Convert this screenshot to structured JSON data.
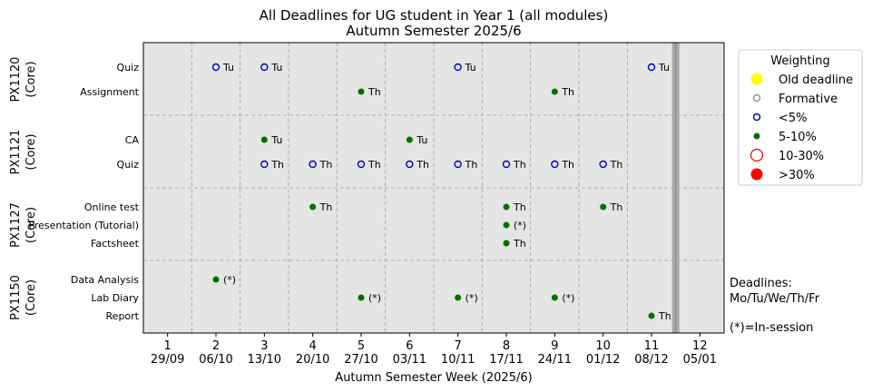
{
  "chart_data": {
    "type": "scatter",
    "title": "All Deadlines for UG student in Year 1 (all modules)",
    "subtitle": "Autumn Semester 2025/6",
    "xlabel": "Autumn Semester Week (2025/6)",
    "xlim": [
      0.5,
      12.5
    ],
    "x_ticks": [
      {
        "week": "1",
        "date": "29/09"
      },
      {
        "week": "2",
        "date": "06/10"
      },
      {
        "week": "3",
        "date": "13/10"
      },
      {
        "week": "4",
        "date": "20/10"
      },
      {
        "week": "5",
        "date": "27/10"
      },
      {
        "week": "6",
        "date": "03/11"
      },
      {
        "week": "7",
        "date": "10/11"
      },
      {
        "week": "8",
        "date": "17/11"
      },
      {
        "week": "9",
        "date": "24/11"
      },
      {
        "week": "10",
        "date": "01/12"
      },
      {
        "week": "11",
        "date": "08/12"
      },
      {
        "week": "12",
        "date": "05/01"
      }
    ],
    "end_of_teaching_marker_week": 11.5,
    "grid": true,
    "modules": [
      {
        "label": "PX1120",
        "sub": "(Core)",
        "rows": [
          "Quiz",
          "Assignment"
        ]
      },
      {
        "label": "PX1121",
        "sub": "(Core)",
        "rows": [
          "CA",
          "Quiz"
        ]
      },
      {
        "label": "PX1127",
        "sub": "(Core)",
        "rows": [
          "Online test",
          "Presentation (Tutorial)",
          "Factsheet"
        ]
      },
      {
        "label": "PX1150",
        "sub": "(Core)",
        "rows": [
          "Data Analysis",
          "Lab Diary",
          "Report"
        ]
      }
    ],
    "legend": {
      "title": "Weighting",
      "position": "top-right",
      "entries": [
        {
          "label": "Old deadline",
          "style": "old"
        },
        {
          "label": "Formative",
          "style": "formative"
        },
        {
          "label": "<5%",
          "style": "lt5"
        },
        {
          "label": "5-10%",
          "style": "5to10"
        },
        {
          "label": "10-30%",
          "style": "10to30"
        },
        {
          "label": ">30%",
          "style": "gt30"
        }
      ]
    },
    "series": [
      {
        "name": "<5%",
        "style": "lt5",
        "points": [
          {
            "module": 0,
            "row": 0,
            "week": 2,
            "label": "Tu"
          },
          {
            "module": 0,
            "row": 0,
            "week": 3,
            "label": "Tu"
          },
          {
            "module": 0,
            "row": 0,
            "week": 7,
            "label": "Tu"
          },
          {
            "module": 0,
            "row": 0,
            "week": 11,
            "label": "Tu"
          },
          {
            "module": 1,
            "row": 1,
            "week": 3,
            "label": "Th"
          },
          {
            "module": 1,
            "row": 1,
            "week": 4,
            "label": "Th"
          },
          {
            "module": 1,
            "row": 1,
            "week": 5,
            "label": "Th"
          },
          {
            "module": 1,
            "row": 1,
            "week": 6,
            "label": "Th"
          },
          {
            "module": 1,
            "row": 1,
            "week": 7,
            "label": "Th"
          },
          {
            "module": 1,
            "row": 1,
            "week": 8,
            "label": "Th"
          },
          {
            "module": 1,
            "row": 1,
            "week": 9,
            "label": "Th"
          },
          {
            "module": 1,
            "row": 1,
            "week": 10,
            "label": "Th"
          }
        ]
      },
      {
        "name": "5-10%",
        "style": "5to10",
        "points": [
          {
            "module": 0,
            "row": 1,
            "week": 5,
            "label": "Th"
          },
          {
            "module": 0,
            "row": 1,
            "week": 9,
            "label": "Th"
          },
          {
            "module": 1,
            "row": 0,
            "week": 3,
            "label": "Tu"
          },
          {
            "module": 1,
            "row": 0,
            "week": 6,
            "label": "Tu"
          },
          {
            "module": 2,
            "row": 0,
            "week": 4,
            "label": "Th"
          },
          {
            "module": 2,
            "row": 0,
            "week": 8,
            "label": "Th"
          },
          {
            "module": 2,
            "row": 0,
            "week": 10,
            "label": "Th"
          },
          {
            "module": 2,
            "row": 1,
            "week": 8,
            "label": "(*)"
          },
          {
            "module": 2,
            "row": 2,
            "week": 8,
            "label": "Th"
          },
          {
            "module": 3,
            "row": 0,
            "week": 2,
            "label": "(*)"
          },
          {
            "module": 3,
            "row": 1,
            "week": 5,
            "label": "(*)"
          },
          {
            "module": 3,
            "row": 1,
            "week": 7,
            "label": "(*)"
          },
          {
            "module": 3,
            "row": 1,
            "week": 9,
            "label": "(*)"
          },
          {
            "module": 3,
            "row": 2,
            "week": 11,
            "label": "Th"
          }
        ]
      }
    ],
    "notes": [
      "Deadlines:",
      "Mo/Tu/We/Th/Fr",
      "(*)=In-session"
    ]
  },
  "colors": {
    "plot_bg": "#e5e5e5",
    "old": "#ffff00",
    "formative": "#808080",
    "lt5": "#0000cc",
    "5to10": "#007000",
    "10to30": "#ff0000",
    "gt30": "#ff0000",
    "grid": "#a0a0a0",
    "marker_band": "#a8a8a8"
  }
}
